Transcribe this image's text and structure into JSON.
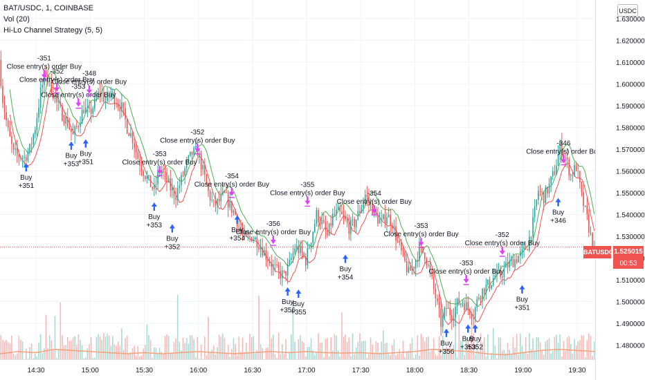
{
  "legend": {
    "symbol_line": "BAT/USDC, 1, COINBASE",
    "volume_line": "Vol (20)",
    "strategy_line": "Hi-Lo Channel Strategy (5, 5)"
  },
  "currency_badge": "USDC",
  "last_price": {
    "symbol": "BATUSDC",
    "value": "1.525015",
    "countdown": "00:53"
  },
  "colors": {
    "up": "#26a69a",
    "down": "#ef5350",
    "long_arrow": "#2962ff",
    "short_arrow": "#e040fb",
    "channel_high": "#ef5350",
    "channel_low": "#4caf50",
    "volume_ma": "#f7a07a"
  },
  "chart_data": {
    "type": "candlestick",
    "x_axis": {
      "tick_labels": [
        "14:30",
        "15:00",
        "15:30",
        "16:00",
        "16:30",
        "17:00",
        "17:30",
        "18:00",
        "18:30",
        "19:00",
        "19:30"
      ],
      "tick_minutes": [
        870,
        900,
        930,
        960,
        990,
        1020,
        1050,
        1080,
        1110,
        1140,
        1170
      ],
      "range_minutes": [
        850,
        1180
      ]
    },
    "y_axis": {
      "tick_labels": [
        "1.480000",
        "1.490000",
        "1.500000",
        "1.510000",
        "1.520000",
        "1.530000",
        "1.540000",
        "1.550000",
        "1.560000",
        "1.570000",
        "1.580000",
        "1.590000",
        "1.600000",
        "1.610000",
        "1.620000",
        "1.630000"
      ],
      "tick_values": [
        1.48,
        1.49,
        1.5,
        1.51,
        1.52,
        1.53,
        1.54,
        1.55,
        1.56,
        1.57,
        1.58,
        1.59,
        1.6,
        1.61,
        1.62,
        1.63
      ],
      "range": [
        1.4735,
        1.6385
      ]
    },
    "close_path": [
      [
        850,
        1.611
      ],
      [
        852,
        1.593
      ],
      [
        855,
        1.578
      ],
      [
        858,
        1.568
      ],
      [
        861,
        1.567
      ],
      [
        864,
        1.566
      ],
      [
        867,
        1.57
      ],
      [
        870,
        1.58
      ],
      [
        873,
        1.596
      ],
      [
        876,
        1.606
      ],
      [
        879,
        1.598
      ],
      [
        882,
        1.591
      ],
      [
        885,
        1.586
      ],
      [
        888,
        1.582
      ],
      [
        891,
        1.576
      ],
      [
        894,
        1.582
      ],
      [
        897,
        1.589
      ],
      [
        900,
        1.586
      ],
      [
        903,
        1.591
      ],
      [
        906,
        1.597
      ],
      [
        909,
        1.592
      ],
      [
        912,
        1.596
      ],
      [
        915,
        1.592
      ],
      [
        918,
        1.589
      ],
      [
        921,
        1.58
      ],
      [
        924,
        1.575
      ],
      [
        927,
        1.566
      ],
      [
        930,
        1.56
      ],
      [
        933,
        1.555
      ],
      [
        936,
        1.551
      ],
      [
        939,
        1.561
      ],
      [
        942,
        1.557
      ],
      [
        945,
        1.552
      ],
      [
        948,
        1.549
      ],
      [
        951,
        1.556
      ],
      [
        954,
        1.563
      ],
      [
        957,
        1.568
      ],
      [
        960,
        1.569
      ],
      [
        963,
        1.56
      ],
      [
        966,
        1.55
      ],
      [
        969,
        1.544
      ],
      [
        972,
        1.546
      ],
      [
        975,
        1.549
      ],
      [
        978,
        1.544
      ],
      [
        981,
        1.54
      ],
      [
        984,
        1.532
      ],
      [
        987,
        1.528
      ],
      [
        990,
        1.53
      ],
      [
        993,
        1.528
      ],
      [
        996,
        1.524
      ],
      [
        999,
        1.52
      ],
      [
        1002,
        1.516
      ],
      [
        1005,
        1.513
      ],
      [
        1008,
        1.512
      ],
      [
        1011,
        1.517
      ],
      [
        1014,
        1.525
      ],
      [
        1017,
        1.523
      ],
      [
        1020,
        1.519
      ],
      [
        1023,
        1.529
      ],
      [
        1026,
        1.54
      ],
      [
        1029,
        1.536
      ],
      [
        1032,
        1.53
      ],
      [
        1035,
        1.539
      ],
      [
        1038,
        1.541
      ],
      [
        1041,
        1.538
      ],
      [
        1044,
        1.534
      ],
      [
        1047,
        1.536
      ],
      [
        1050,
        1.542
      ],
      [
        1053,
        1.549
      ],
      [
        1056,
        1.544
      ],
      [
        1059,
        1.539
      ],
      [
        1062,
        1.536
      ],
      [
        1065,
        1.54
      ],
      [
        1068,
        1.536
      ],
      [
        1071,
        1.527
      ],
      [
        1074,
        1.52
      ],
      [
        1077,
        1.513
      ],
      [
        1080,
        1.517
      ],
      [
        1083,
        1.524
      ],
      [
        1086,
        1.522
      ],
      [
        1089,
        1.513
      ],
      [
        1092,
        1.502
      ],
      [
        1095,
        1.49
      ],
      [
        1098,
        1.497
      ],
      [
        1101,
        1.494
      ],
      [
        1104,
        1.499
      ],
      [
        1107,
        1.5
      ],
      [
        1110,
        1.497
      ],
      [
        1113,
        1.494
      ],
      [
        1116,
        1.503
      ],
      [
        1119,
        1.506
      ],
      [
        1122,
        1.508
      ],
      [
        1125,
        1.512
      ],
      [
        1128,
        1.512
      ],
      [
        1131,
        1.516
      ],
      [
        1134,
        1.518
      ],
      [
        1137,
        1.52
      ],
      [
        1140,
        1.522
      ],
      [
        1143,
        1.526
      ],
      [
        1146,
        1.536
      ],
      [
        1149,
        1.551
      ],
      [
        1152,
        1.548
      ],
      [
        1155,
        1.553
      ],
      [
        1158,
        1.56
      ],
      [
        1161,
        1.571
      ],
      [
        1164,
        1.566
      ],
      [
        1167,
        1.558
      ],
      [
        1170,
        1.562
      ],
      [
        1173,
        1.548
      ],
      [
        1176,
        1.538
      ],
      [
        1179,
        1.526
      ]
    ],
    "volume_profile": [
      [
        850,
        0.25
      ],
      [
        860,
        0.35
      ],
      [
        870,
        0.3
      ],
      [
        880,
        0.45
      ],
      [
        890,
        0.4
      ],
      [
        900,
        0.35
      ],
      [
        910,
        0.3
      ],
      [
        920,
        0.25
      ],
      [
        930,
        0.3
      ],
      [
        940,
        0.25
      ],
      [
        950,
        0.3
      ],
      [
        960,
        0.35
      ],
      [
        970,
        0.3
      ],
      [
        980,
        0.25
      ],
      [
        990,
        0.3
      ],
      [
        1000,
        0.35
      ],
      [
        1010,
        0.3
      ],
      [
        1020,
        0.35
      ],
      [
        1030,
        0.3
      ],
      [
        1040,
        0.28
      ],
      [
        1050,
        0.3
      ],
      [
        1060,
        0.25
      ],
      [
        1070,
        0.3
      ],
      [
        1080,
        0.35
      ],
      [
        1090,
        0.45
      ],
      [
        1100,
        0.4
      ],
      [
        1110,
        0.35
      ],
      [
        1120,
        0.25
      ],
      [
        1130,
        0.2
      ],
      [
        1140,
        0.3
      ],
      [
        1150,
        0.4
      ],
      [
        1160,
        0.45
      ],
      [
        1170,
        0.4
      ],
      [
        1180,
        0.35
      ]
    ],
    "signals": [
      {
        "t": 864,
        "price": 1.561,
        "dir": "long",
        "lines": [
          "Buy",
          "+351"
        ]
      },
      {
        "t": 889,
        "price": 1.571,
        "dir": "long",
        "lines": [
          "Buy",
          "+353"
        ]
      },
      {
        "t": 897,
        "price": 1.572,
        "dir": "long",
        "lines": [
          "Buy",
          "+351"
        ]
      },
      {
        "t": 935,
        "price": 1.543,
        "dir": "long",
        "lines": [
          "Buy",
          "+353"
        ]
      },
      {
        "t": 945,
        "price": 1.533,
        "dir": "long",
        "lines": [
          "Buy",
          "+352"
        ]
      },
      {
        "t": 981,
        "price": 1.537,
        "dir": "long",
        "lines": [
          "Buy",
          "+354"
        ]
      },
      {
        "t": 1009,
        "price": 1.504,
        "dir": "long",
        "lines": [
          "Buy",
          "+356"
        ]
      },
      {
        "t": 1015,
        "price": 1.503,
        "dir": "long",
        "lines": [
          "Buy",
          "+355"
        ]
      },
      {
        "t": 1041,
        "price": 1.519,
        "dir": "long",
        "lines": [
          "Buy",
          "+354"
        ]
      },
      {
        "t": 1097,
        "price": 1.485,
        "dir": "long",
        "lines": [
          "Buy",
          "+356"
        ]
      },
      {
        "t": 1109,
        "price": 1.487,
        "dir": "long",
        "lines": [
          "Buy",
          "+353"
        ]
      },
      {
        "t": 1113,
        "price": 1.487,
        "dir": "long",
        "lines": [
          "Buy",
          "+352"
        ]
      },
      {
        "t": 1139,
        "price": 1.505,
        "dir": "long",
        "lines": [
          "Buy",
          "+351"
        ]
      },
      {
        "t": 1159,
        "price": 1.545,
        "dir": "long",
        "lines": [
          "Buy",
          "+346"
        ]
      },
      {
        "t": 874,
        "price": 1.605,
        "dir": "exit",
        "lines": [
          "-351",
          "Close entry(s) order Buy"
        ]
      },
      {
        "t": 881,
        "price": 1.599,
        "dir": "exit",
        "lines": [
          "-352",
          "Close entry(s) order Buy"
        ]
      },
      {
        "t": 893,
        "price": 1.592,
        "dir": "exit",
        "lines": [
          "-353",
          "Close entry(s) order Buy"
        ]
      },
      {
        "t": 899,
        "price": 1.598,
        "dir": "exit",
        "lines": [
          "-348",
          "Close entry(s) order Buy"
        ]
      },
      {
        "t": 938,
        "price": 1.561,
        "dir": "exit",
        "lines": [
          "-353",
          "Close entry(s) order Buy"
        ]
      },
      {
        "t": 959,
        "price": 1.571,
        "dir": "exit",
        "lines": [
          "-352",
          "Close entry(s) order Buy"
        ]
      },
      {
        "t": 978,
        "price": 1.551,
        "dir": "exit",
        "lines": [
          "-354",
          "Close entry(s) order Buy"
        ]
      },
      {
        "t": 1001,
        "price": 1.529,
        "dir": "exit",
        "lines": [
          "-356",
          "Close entry(s) order Buy"
        ]
      },
      {
        "t": 1020,
        "price": 1.547,
        "dir": "exit",
        "lines": [
          "-355",
          "Close entry(s) order Buy"
        ]
      },
      {
        "t": 1057,
        "price": 1.543,
        "dir": "exit",
        "lines": [
          "-354",
          "Close entry(s) order Buy"
        ]
      },
      {
        "t": 1083,
        "price": 1.528,
        "dir": "exit",
        "lines": [
          "-353",
          "Close entry(s) order Buy"
        ]
      },
      {
        "t": 1108,
        "price": 1.511,
        "dir": "exit",
        "lines": [
          "-353",
          "Close entry(s) order Buy"
        ]
      },
      {
        "t": 1128,
        "price": 1.524,
        "dir": "exit",
        "lines": [
          "-352",
          "Close entry(s) order Buy"
        ]
      },
      {
        "t": 1162,
        "price": 1.566,
        "dir": "exit",
        "lines": [
          "-346",
          "Close entry(s) order Buy"
        ]
      }
    ],
    "last_price": 1.525015
  }
}
